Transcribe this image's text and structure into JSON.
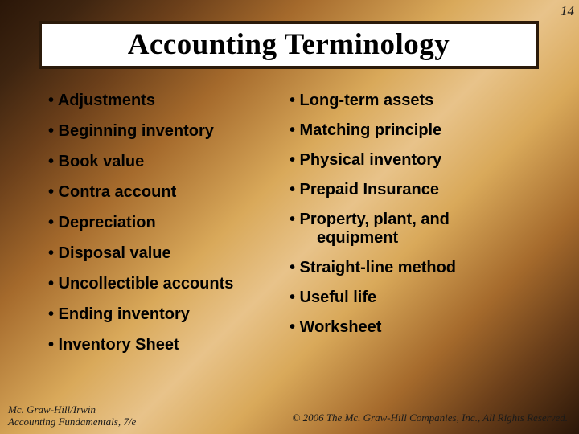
{
  "page_number": "14",
  "title": "Accounting Terminology",
  "columns": {
    "left": [
      "• Adjustments",
      "• Beginning inventory",
      "• Book value",
      "• Contra account",
      "• Depreciation",
      "• Disposal value",
      "• Uncollectible accounts",
      "• Ending inventory",
      "• Inventory Sheet"
    ],
    "right": [
      "• Long-term assets",
      "• Matching principle",
      "• Physical inventory",
      "• Prepaid Insurance",
      "• Property, plant, and equipment",
      "• Straight-line method",
      "• Useful life",
      "• Worksheet"
    ]
  },
  "footer": {
    "left_line1": "Mc. Graw-Hill/Irwin",
    "left_line2": "Accounting Fundamentals, 7/e",
    "right": "© 2006 The Mc. Graw-Hill Companies, Inc., All Rights Reserved."
  },
  "styling": {
    "slide_width": 720,
    "slide_height": 540,
    "background_gradient": [
      "#2a1608",
      "#3d2410",
      "#6b3f1a",
      "#a56a2c",
      "#d9a95a",
      "#e8c38a",
      "#d9a95a",
      "#a56a2c",
      "#6b3f1a",
      "#2a1608"
    ],
    "title_box": {
      "bg": "#ffffff",
      "border": "#2b1a0a",
      "border_width": 4,
      "font": "Times New Roman",
      "font_weight": "bold",
      "font_size": 37,
      "color": "#000000"
    },
    "bullet_items": {
      "font": "Arial",
      "font_weight": "bold",
      "font_size": 20,
      "color": "#000000"
    },
    "page_number": {
      "font": "Times New Roman italic",
      "font_size": 17,
      "color": "#1a1a1a"
    },
    "footer": {
      "font": "Times New Roman italic",
      "font_size": 13,
      "color": "#1a1a1a"
    }
  }
}
